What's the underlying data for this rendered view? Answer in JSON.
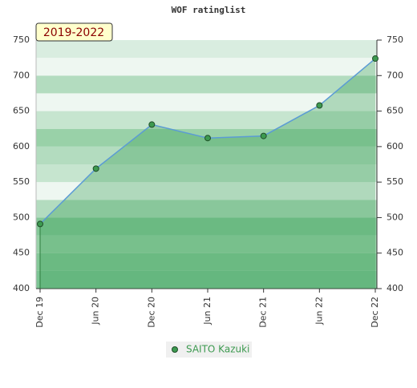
{
  "chart_data": {
    "type": "line",
    "title": "WOF ratinglist",
    "annotation": "2019-2022",
    "categories": [
      "Dec 19",
      "Jun 20",
      "Dec 20",
      "Jun 21",
      "Dec 21",
      "Jun 22",
      "Dec 22"
    ],
    "series": [
      {
        "name": "SAITO Kazuki",
        "color": "#5b9bd5",
        "values": [
          491,
          569,
          631,
          612,
          615,
          658,
          724
        ]
      }
    ],
    "ylim": [
      400,
      750
    ],
    "yticks": [
      400,
      450,
      500,
      550,
      600,
      650,
      700,
      750
    ],
    "grid": true
  }
}
